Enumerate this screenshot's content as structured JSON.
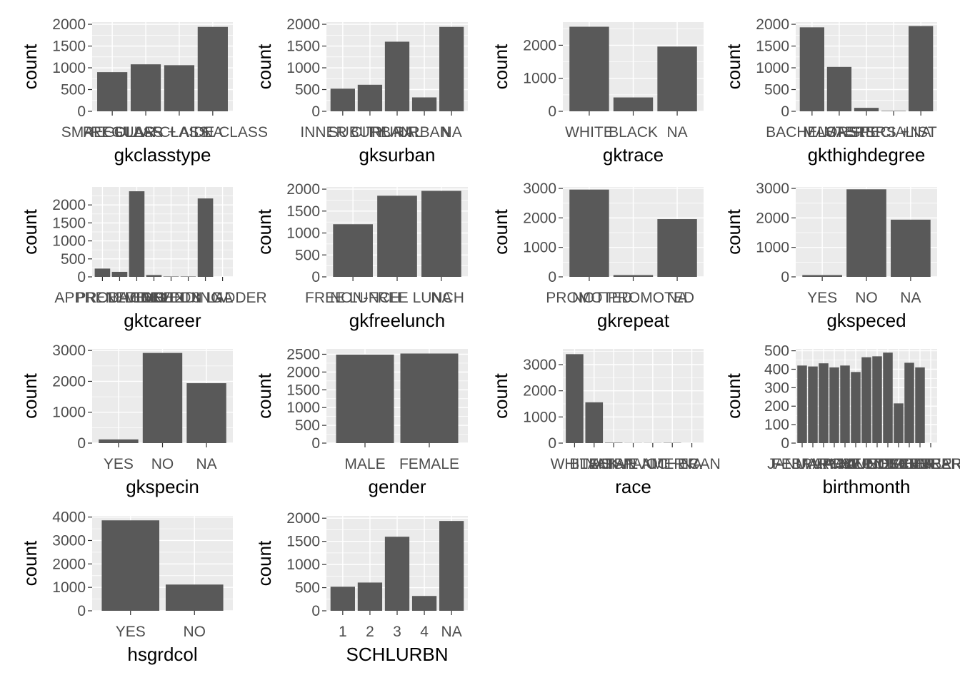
{
  "style": {
    "panel_bg": "#ebebeb",
    "grid_major": "#ffffff",
    "bar_fill": "#595959",
    "tick_text": "#4d4d4d",
    "title_text": "#000000"
  },
  "chart_data": [
    {
      "type": "bar",
      "xlabel": "gkclasstype",
      "ylabel": "count",
      "categories": [
        "SMALL CLASS",
        "REGULAR CLASS",
        "REGULAR + AIDE CLASS",
        "NA"
      ],
      "values": [
        900,
        1080,
        1060,
        1940
      ],
      "yticks": [
        0,
        500,
        1000,
        1500,
        2000
      ],
      "ylim": [
        0,
        2050
      ],
      "grid": true
    },
    {
      "type": "bar",
      "xlabel": "gksurban",
      "ylabel": "count",
      "categories": [
        "INNER CITY",
        "SUBURBAN",
        "RURAL",
        "URBAN",
        "NA"
      ],
      "values": [
        520,
        610,
        1600,
        320,
        1940
      ],
      "yticks": [
        0,
        500,
        1000,
        1500,
        2000
      ],
      "ylim": [
        0,
        2050
      ],
      "grid": true
    },
    {
      "type": "bar",
      "xlabel": "gktrace",
      "ylabel": "count",
      "categories": [
        "WHITE",
        "BLACK",
        "NA"
      ],
      "values": [
        2560,
        420,
        1960
      ],
      "yticks": [
        0,
        1000,
        2000
      ],
      "ylim": [
        0,
        2700
      ],
      "grid": true
    },
    {
      "type": "bar",
      "xlabel": "gkthighdegree",
      "ylabel": "count",
      "categories": [
        "BACHELORS",
        "MASTERS",
        "MASTERS +",
        "SPECIALIST",
        "NA"
      ],
      "values": [
        1930,
        1020,
        80,
        10,
        1960
      ],
      "yticks": [
        0,
        500,
        1000,
        1500,
        2000
      ],
      "ylim": [
        0,
        2050
      ],
      "grid": true
    },
    {
      "type": "bar",
      "xlabel": "gktcareer",
      "ylabel": "count",
      "categories": [
        "APPRENTICE",
        "PROBATION",
        "LEVEL 1",
        "LEVEL 2",
        "LEVEL 3",
        "PENDING",
        "NOT ON LADDER",
        "NA"
      ],
      "values": [
        230,
        140,
        2380,
        50,
        10,
        10,
        2180,
        0
      ],
      "yticks": [
        0,
        500,
        1000,
        1500,
        2000
      ],
      "ylim": [
        0,
        2500
      ],
      "grid": true
    },
    {
      "type": "bar",
      "xlabel": "gkfreelunch",
      "ylabel": "count",
      "categories": [
        "FREE LUNCH",
        "NON-FREE LUNCH",
        "NA"
      ],
      "values": [
        1200,
        1850,
        1960
      ],
      "yticks": [
        0,
        500,
        1000,
        1500,
        2000
      ],
      "ylim": [
        0,
        2050
      ],
      "grid": true
    },
    {
      "type": "bar",
      "xlabel": "gkrepeat",
      "ylabel": "count",
      "categories": [
        "PROMOTED",
        "NOT PROMOTED",
        "NA"
      ],
      "values": [
        2960,
        60,
        1960
      ],
      "yticks": [
        0,
        1000,
        2000,
        3000
      ],
      "ylim": [
        0,
        3050
      ],
      "grid": true
    },
    {
      "type": "bar",
      "xlabel": "gkspeced",
      "ylabel": "count",
      "categories": [
        "YES",
        "NO",
        "NA"
      ],
      "values": [
        60,
        2970,
        1940
      ],
      "yticks": [
        0,
        1000,
        2000,
        3000
      ],
      "ylim": [
        0,
        3050
      ],
      "grid": true
    },
    {
      "type": "bar",
      "xlabel": "gkspecin",
      "ylabel": "count",
      "categories": [
        "YES",
        "NO",
        "NA"
      ],
      "values": [
        120,
        2920,
        1940
      ],
      "yticks": [
        0,
        1000,
        2000,
        3000
      ],
      "ylim": [
        0,
        3050
      ],
      "grid": true
    },
    {
      "type": "bar",
      "xlabel": "gender",
      "ylabel": "count",
      "categories": [
        "MALE",
        "FEMALE"
      ],
      "values": [
        2490,
        2520
      ],
      "yticks": [
        0,
        500,
        1000,
        1500,
        2000,
        2500
      ],
      "ylim": [
        0,
        2650
      ],
      "grid": true
    },
    {
      "type": "bar",
      "xlabel": "race",
      "ylabel": "count",
      "categories": [
        "WHITE",
        "BLACK",
        "ASIAN",
        "HISPANIC",
        "NATIVE AMERICAN",
        "OTHER",
        "NA"
      ],
      "values": [
        3400,
        1560,
        15,
        5,
        5,
        10,
        0
      ],
      "yticks": [
        0,
        1000,
        2000,
        3000
      ],
      "ylim": [
        0,
        3600
      ],
      "grid": true
    },
    {
      "type": "bar",
      "xlabel": "birthmonth",
      "ylabel": "count",
      "categories": [
        "JANUARY",
        "FEBRUARY",
        "MARCH",
        "APRIL",
        "MAY",
        "JUNE",
        "JULY",
        "AUGUST",
        "SEPTEMBER",
        "OCTOBER",
        "NOVEMBER",
        "DECEMBER",
        "FEBURARY"
      ],
      "values": [
        420,
        415,
        432,
        410,
        420,
        385,
        465,
        470,
        490,
        215,
        435,
        410,
        0
      ],
      "yticks": [
        0,
        100,
        200,
        300,
        400,
        500
      ],
      "ylim": [
        0,
        510
      ],
      "grid": true
    },
    {
      "type": "bar",
      "xlabel": "hsgrdcol",
      "ylabel": "count",
      "categories": [
        "YES",
        "NO"
      ],
      "values": [
        3860,
        1120
      ],
      "yticks": [
        0,
        1000,
        2000,
        3000,
        4000
      ],
      "ylim": [
        0,
        4050
      ],
      "grid": true
    },
    {
      "type": "bar",
      "xlabel": "SCHLURBN",
      "ylabel": "count",
      "categories": [
        "1",
        "2",
        "3",
        "4",
        "NA"
      ],
      "values": [
        520,
        610,
        1600,
        320,
        1940
      ],
      "yticks": [
        0,
        500,
        1000,
        1500,
        2000
      ],
      "ylim": [
        0,
        2050
      ],
      "grid": true
    }
  ]
}
